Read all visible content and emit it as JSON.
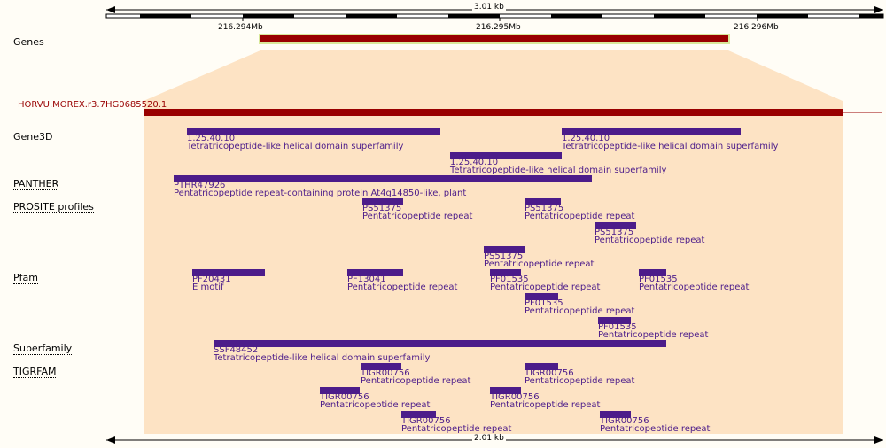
{
  "top_scale": {
    "length_label": "3.01 kb"
  },
  "bottom_scale": {
    "length_label": "2.01 kb"
  },
  "coord_ticks": [
    "216.294Mb",
    "216.295Mb",
    "216.296Mb"
  ],
  "genes_track": {
    "label": "Genes"
  },
  "transcript": {
    "label": "HORVU.MOREX.r3.7HG0685520.1"
  },
  "colors": {
    "background": "#fffdf6",
    "zoom_region": "#fde3c4",
    "gene_bar": "#990000",
    "gene_outline": "#d8e89a",
    "feature": "#4c1c8a",
    "transcript_label": "#990000"
  },
  "tracks": [
    {
      "label": "Gene3D",
      "features": [
        {
          "id": "1.25.40.10",
          "desc": "Tetratricopeptide-like helical domain superfamily"
        },
        {
          "id": "1.25.40.10",
          "desc": "Tetratricopeptide-like helical domain superfamily"
        },
        {
          "id": "1.25.40.10",
          "desc": "Tetratricopeptide-like helical domain superfamily"
        }
      ]
    },
    {
      "label": "PANTHER",
      "features": [
        {
          "id": "PTHR47926",
          "desc": "Pentatricopeptide repeat-containing protein At4g14850-like, plant"
        }
      ]
    },
    {
      "label": "PROSITE profiles",
      "features": [
        {
          "id": "PS51375",
          "desc": "Pentatricopeptide repeat"
        },
        {
          "id": "PS51375",
          "desc": "Pentatricopeptide repeat"
        },
        {
          "id": "PS51375",
          "desc": "Pentatricopeptide repeat"
        },
        {
          "id": "PS51375",
          "desc": "Pentatricopeptide repeat"
        }
      ]
    },
    {
      "label": "Pfam",
      "features": [
        {
          "id": "PF20431",
          "desc": "E motif"
        },
        {
          "id": "PF13041",
          "desc": "Pentatricopeptide repeat"
        },
        {
          "id": "PF01535",
          "desc": "Pentatricopeptide repeat"
        },
        {
          "id": "PF01535",
          "desc": "Pentatricopeptide repeat"
        },
        {
          "id": "PF01535",
          "desc": "Pentatricopeptide repeat"
        },
        {
          "id": "PF01535",
          "desc": "Pentatricopeptide repeat"
        }
      ]
    },
    {
      "label": "Superfamily",
      "features": [
        {
          "id": "SSF48452",
          "desc": "Tetratricopeptide-like helical domain superfamily"
        }
      ]
    },
    {
      "label": "TIGRFAM",
      "features": [
        {
          "id": "TIGR00756",
          "desc": "Pentatricopeptide repeat"
        },
        {
          "id": "TIGR00756",
          "desc": "Pentatricopeptide repeat"
        },
        {
          "id": "TIGR00756",
          "desc": "Pentatricopeptide repeat"
        },
        {
          "id": "TIGR00756",
          "desc": "Pentatricopeptide repeat"
        },
        {
          "id": "TIGR00756",
          "desc": "Pentatricopeptide repeat"
        },
        {
          "id": "TIGR00756",
          "desc": "Pentatricopeptide repeat"
        }
      ]
    }
  ]
}
